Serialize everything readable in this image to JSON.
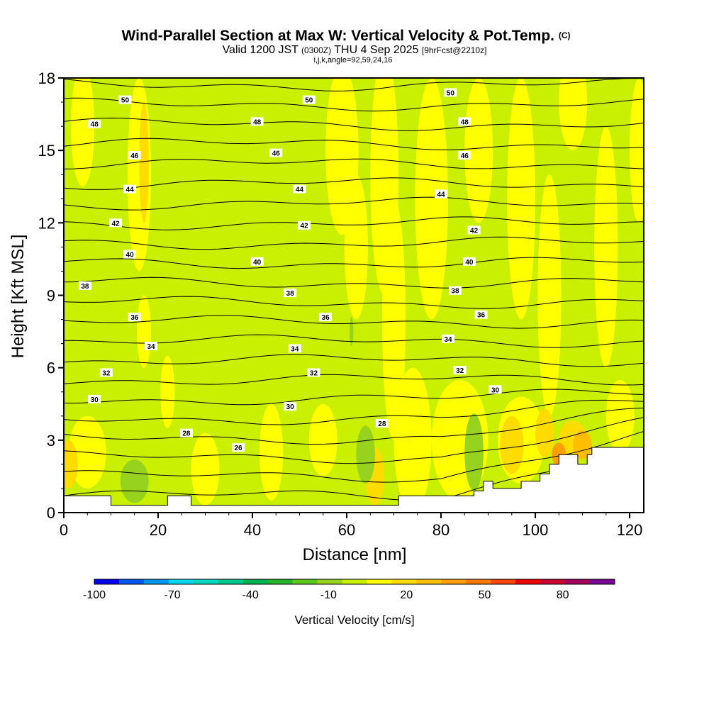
{
  "title": {
    "main": "Wind-Parallel Section at Max W: Vertical Velocity & Pot.Temp.",
    "main_suffix": "(C)",
    "valid_prefix": "Valid 1200 JST",
    "valid_utc": "(0300Z)",
    "valid_date": "THU 4 Sep 2025",
    "forecast_tag": "[9hrFcst@2210z]",
    "params": "i,j,k,angle=92,59,24,16"
  },
  "chart_data": {
    "type": "heatmap",
    "xlabel": "Distance [nm]",
    "ylabel": "Height [Kft MSL]",
    "xlim": [
      0,
      123
    ],
    "ylim": [
      0,
      18
    ],
    "x_ticks": [
      "0",
      "20",
      "40",
      "60",
      "80",
      "100",
      "120"
    ],
    "x_tick_values": [
      0,
      20,
      40,
      60,
      80,
      100,
      120
    ],
    "y_ticks": [
      "0",
      "3",
      "6",
      "9",
      "12",
      "15",
      "18"
    ],
    "y_tick_values": [
      0,
      3,
      6,
      9,
      12,
      15,
      18
    ],
    "colorbar": {
      "title": "Vertical Velocity [cm/s]",
      "labels": [
        "-100",
        "-70",
        "-40",
        "-10",
        "20",
        "50",
        "80"
      ],
      "label_values": [
        -100,
        -70,
        -40,
        -10,
        20,
        50,
        80
      ],
      "min": -100,
      "max": 100,
      "colors": [
        "#0000f0",
        "#0055f5",
        "#0096f0",
        "#00d8f0",
        "#00d8c0",
        "#00c88c",
        "#00b450",
        "#28b428",
        "#5ac81e",
        "#96d21e",
        "#c8f000",
        "#ffff00",
        "#ffdc00",
        "#ffbe00",
        "#ffa000",
        "#ff7800",
        "#ff4600",
        "#f00000",
        "#c80032",
        "#a0005a",
        "#780096"
      ]
    },
    "theta_contour_labels": [
      {
        "text": "26",
        "x": 37,
        "y": 2.7
      },
      {
        "text": "28",
        "x": 26,
        "y": 3.3
      },
      {
        "text": "28",
        "x": 67.5,
        "y": 3.7
      },
      {
        "text": "30",
        "x": 6.5,
        "y": 4.7
      },
      {
        "text": "30",
        "x": 48,
        "y": 4.4
      },
      {
        "text": "30",
        "x": 91.5,
        "y": 5.1
      },
      {
        "text": "32",
        "x": 9,
        "y": 5.8
      },
      {
        "text": "32",
        "x": 53,
        "y": 5.8
      },
      {
        "text": "32",
        "x": 84,
        "y": 5.9
      },
      {
        "text": "34",
        "x": 18.5,
        "y": 6.9
      },
      {
        "text": "34",
        "x": 49,
        "y": 6.8
      },
      {
        "text": "34",
        "x": 81.5,
        "y": 7.2
      },
      {
        "text": "36",
        "x": 15,
        "y": 8.1
      },
      {
        "text": "36",
        "x": 55.5,
        "y": 8.1
      },
      {
        "text": "36",
        "x": 88.5,
        "y": 8.2
      },
      {
        "text": "38",
        "x": 4.5,
        "y": 9.4
      },
      {
        "text": "38",
        "x": 48,
        "y": 9.1
      },
      {
        "text": "38",
        "x": 83,
        "y": 9.2
      },
      {
        "text": "40",
        "x": 14,
        "y": 10.7
      },
      {
        "text": "40",
        "x": 41,
        "y": 10.4
      },
      {
        "text": "40",
        "x": 86,
        "y": 10.4
      },
      {
        "text": "42",
        "x": 11,
        "y": 12.0
      },
      {
        "text": "42",
        "x": 51,
        "y": 11.9
      },
      {
        "text": "42",
        "x": 87,
        "y": 11.7
      },
      {
        "text": "44",
        "x": 14,
        "y": 13.4
      },
      {
        "text": "44",
        "x": 50,
        "y": 13.4
      },
      {
        "text": "44",
        "x": 80,
        "y": 13.2
      },
      {
        "text": "46",
        "x": 15,
        "y": 14.8
      },
      {
        "text": "46",
        "x": 45,
        "y": 14.9
      },
      {
        "text": "46",
        "x": 85,
        "y": 14.8
      },
      {
        "text": "48",
        "x": 6.5,
        "y": 16.1
      },
      {
        "text": "48",
        "x": 41,
        "y": 16.2
      },
      {
        "text": "48",
        "x": 85,
        "y": 16.2
      },
      {
        "text": "50",
        "x": 13,
        "y": 17.1
      },
      {
        "text": "50",
        "x": 52,
        "y": 17.1
      },
      {
        "text": "50",
        "x": 82,
        "y": 17.4
      }
    ],
    "terrain_steps": [
      [
        0,
        0.7
      ],
      [
        10,
        0.7
      ],
      [
        10,
        0.3
      ],
      [
        22,
        0.3
      ],
      [
        22,
        0.7
      ],
      [
        27,
        0.7
      ],
      [
        27,
        0.3
      ],
      [
        71,
        0.3
      ],
      [
        71,
        0.7
      ],
      [
        87,
        0.7
      ],
      [
        87,
        0.9
      ],
      [
        89,
        0.9
      ],
      [
        89,
        1.3
      ],
      [
        91,
        1.3
      ],
      [
        91,
        1.0
      ],
      [
        97,
        1.0
      ],
      [
        97,
        1.3
      ],
      [
        101,
        1.3
      ],
      [
        101,
        1.6
      ],
      [
        103,
        1.6
      ],
      [
        103,
        2.0
      ],
      [
        105,
        2.0
      ],
      [
        105,
        2.4
      ],
      [
        109,
        2.4
      ],
      [
        109,
        2.0
      ],
      [
        111,
        2.0
      ],
      [
        111,
        2.4
      ],
      [
        112,
        2.4
      ],
      [
        112,
        2.7
      ],
      [
        123,
        2.7
      ],
      [
        123,
        0
      ]
    ]
  }
}
